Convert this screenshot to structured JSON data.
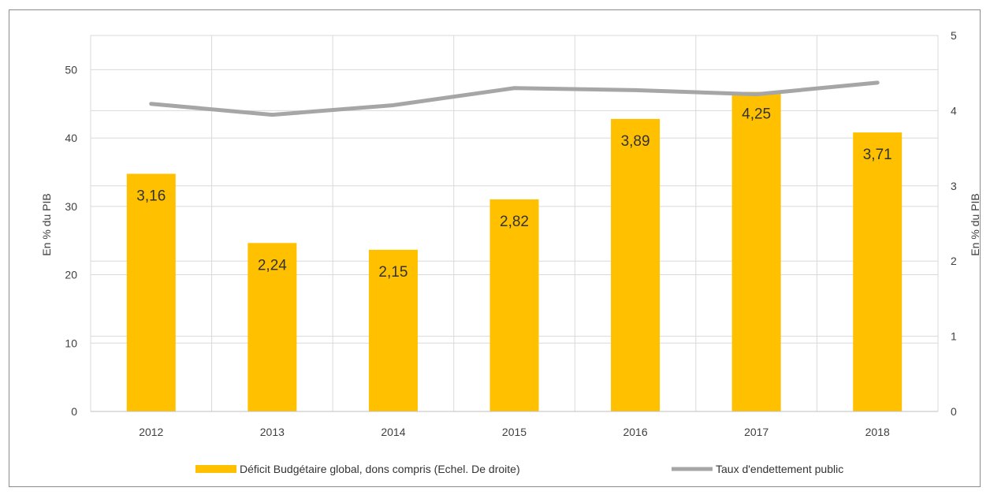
{
  "chart_data": {
    "type": "bar",
    "categories": [
      "2012",
      "2013",
      "2014",
      "2015",
      "2016",
      "2017",
      "2018"
    ],
    "series": [
      {
        "name": "Déficit Budgétaire global, dons compris (Echel. De droite)",
        "type": "bar",
        "axis": "right",
        "color": "#FFC000",
        "values": [
          3.16,
          2.24,
          2.15,
          2.82,
          3.89,
          4.25,
          3.71
        ],
        "data_labels": [
          "3,16",
          "2,24",
          "2,15",
          "2,82",
          "3,89",
          "4,25",
          "3,71"
        ]
      },
      {
        "name": "Taux d'endettement public",
        "type": "line",
        "axis": "left",
        "color": "#A6A6A6",
        "values": [
          45.0,
          43.4,
          44.8,
          47.3,
          47.0,
          46.4,
          48.1
        ]
      }
    ],
    "y_left": {
      "label": "En % du PIB",
      "ylim": [
        0,
        55
      ],
      "ticks": [
        "0",
        "10",
        "20",
        "30",
        "40",
        "50"
      ]
    },
    "y_right": {
      "label": "En % du PIB",
      "ylim": [
        0,
        5
      ],
      "ticks": [
        "0",
        "1",
        "2",
        "3",
        "4",
        "5"
      ]
    },
    "grid": true,
    "legend_position": "bottom"
  }
}
